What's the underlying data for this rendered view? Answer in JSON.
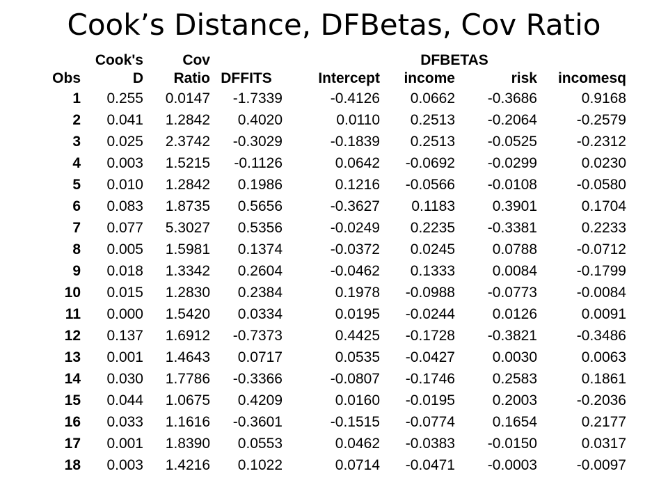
{
  "title": "Cook’s Distance, DFBetas, Cov Ratio",
  "table": {
    "headers": {
      "obs": "Obs",
      "cooks_d_line1": "Cook's",
      "cooks_d_line2": "D",
      "cov_ratio_line1": "Cov",
      "cov_ratio_line2": "Ratio",
      "dffits": "DFFITS",
      "dfbetas_group": "DFBETAS",
      "intercept": "Intercept",
      "income": "income",
      "risk": "risk",
      "incomesq": "incomesq"
    },
    "rows": [
      {
        "obs": "1",
        "cooks_d": "0.255",
        "cov_ratio": "0.0147",
        "dffits": "-1.7339",
        "intercept": "-0.4126",
        "income": "0.0662",
        "risk": "-0.3686",
        "incomesq": "0.9168"
      },
      {
        "obs": "2",
        "cooks_d": "0.041",
        "cov_ratio": "1.2842",
        "dffits": "0.4020",
        "intercept": "0.0110",
        "income": "0.2513",
        "risk": "-0.2064",
        "incomesq": "-0.2579"
      },
      {
        "obs": "3",
        "cooks_d": "0.025",
        "cov_ratio": "2.3742",
        "dffits": "-0.3029",
        "intercept": "-0.1839",
        "income": "0.2513",
        "risk": "-0.0525",
        "incomesq": "-0.2312"
      },
      {
        "obs": "4",
        "cooks_d": "0.003",
        "cov_ratio": "1.5215",
        "dffits": "-0.1126",
        "intercept": "0.0642",
        "income": "-0.0692",
        "risk": "-0.0299",
        "incomesq": "0.0230"
      },
      {
        "obs": "5",
        "cooks_d": "0.010",
        "cov_ratio": "1.2842",
        "dffits": "0.1986",
        "intercept": "0.1216",
        "income": "-0.0566",
        "risk": "-0.0108",
        "incomesq": "-0.0580"
      },
      {
        "obs": "6",
        "cooks_d": "0.083",
        "cov_ratio": "1.8735",
        "dffits": "0.5656",
        "intercept": "-0.3627",
        "income": "0.1183",
        "risk": "0.3901",
        "incomesq": "0.1704"
      },
      {
        "obs": "7",
        "cooks_d": "0.077",
        "cov_ratio": "5.3027",
        "dffits": "0.5356",
        "intercept": "-0.0249",
        "income": "0.2235",
        "risk": "-0.3381",
        "incomesq": "0.2233"
      },
      {
        "obs": "8",
        "cooks_d": "0.005",
        "cov_ratio": "1.5981",
        "dffits": "0.1374",
        "intercept": "-0.0372",
        "income": "0.0245",
        "risk": "0.0788",
        "incomesq": "-0.0712"
      },
      {
        "obs": "9",
        "cooks_d": "0.018",
        "cov_ratio": "1.3342",
        "dffits": "0.2604",
        "intercept": "-0.0462",
        "income": "0.1333",
        "risk": "0.0084",
        "incomesq": "-0.1799"
      },
      {
        "obs": "10",
        "cooks_d": "0.015",
        "cov_ratio": "1.2830",
        "dffits": "0.2384",
        "intercept": "0.1978",
        "income": "-0.0988",
        "risk": "-0.0773",
        "incomesq": "-0.0084"
      },
      {
        "obs": "11",
        "cooks_d": "0.000",
        "cov_ratio": "1.5420",
        "dffits": "0.0334",
        "intercept": "0.0195",
        "income": "-0.0244",
        "risk": "0.0126",
        "incomesq": "0.0091"
      },
      {
        "obs": "12",
        "cooks_d": "0.137",
        "cov_ratio": "1.6912",
        "dffits": "-0.7373",
        "intercept": "0.4425",
        "income": "-0.1728",
        "risk": "-0.3821",
        "incomesq": "-0.3486"
      },
      {
        "obs": "13",
        "cooks_d": "0.001",
        "cov_ratio": "1.4643",
        "dffits": "0.0717",
        "intercept": "0.0535",
        "income": "-0.0427",
        "risk": "0.0030",
        "incomesq": "0.0063"
      },
      {
        "obs": "14",
        "cooks_d": "0.030",
        "cov_ratio": "1.7786",
        "dffits": "-0.3366",
        "intercept": "-0.0807",
        "income": "-0.1746",
        "risk": "0.2583",
        "incomesq": "0.1861"
      },
      {
        "obs": "15",
        "cooks_d": "0.044",
        "cov_ratio": "1.0675",
        "dffits": "0.4209",
        "intercept": "0.0160",
        "income": "-0.0195",
        "risk": "0.2003",
        "incomesq": "-0.2036"
      },
      {
        "obs": "16",
        "cooks_d": "0.033",
        "cov_ratio": "1.1616",
        "dffits": "-0.3601",
        "intercept": "-0.1515",
        "income": "-0.0774",
        "risk": "0.1654",
        "incomesq": "0.2177"
      },
      {
        "obs": "17",
        "cooks_d": "0.001",
        "cov_ratio": "1.8390",
        "dffits": "0.0553",
        "intercept": "0.0462",
        "income": "-0.0383",
        "risk": "-0.0150",
        "incomesq": "0.0317"
      },
      {
        "obs": "18",
        "cooks_d": "0.003",
        "cov_ratio": "1.4216",
        "dffits": "0.1022",
        "intercept": "0.0714",
        "income": "-0.0471",
        "risk": "-0.0003",
        "incomesq": "-0.0097"
      }
    ]
  }
}
